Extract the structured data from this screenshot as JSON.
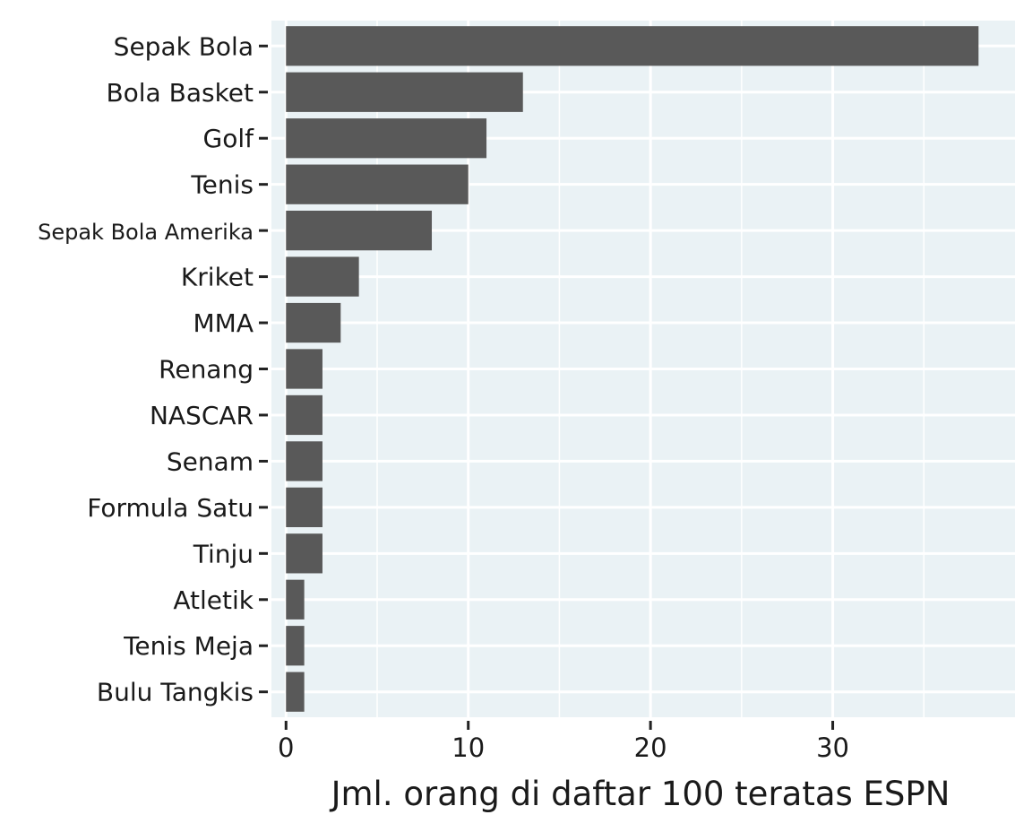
{
  "chart_data": {
    "type": "bar",
    "orientation": "horizontal",
    "title": "",
    "xlabel": "Jml. orang di daftar 100 teratas ESPN",
    "ylabel": "",
    "categories": [
      "Sepak Bola",
      "Bola Basket",
      "Golf",
      "Tenis",
      "Sepak Bola Amerika",
      "Kriket",
      "MMA",
      "Renang",
      "NASCAR",
      "Senam",
      "Formula Satu",
      "Tinju",
      "Atletik",
      "Tenis Meja",
      "Bulu Tangkis"
    ],
    "values": [
      38,
      13,
      11,
      10,
      8,
      4,
      3,
      2,
      2,
      2,
      2,
      2,
      1,
      1,
      1
    ],
    "xlim": [
      -0.8,
      40
    ],
    "xticks": [
      0,
      10,
      20,
      30
    ],
    "xtick_labels": [
      "0",
      "10",
      "20",
      "30"
    ],
    "minor_xticks": [
      5,
      15,
      25,
      35
    ],
    "grid": true,
    "colors": {
      "bar": "#595959",
      "panel": "#EAF2F5",
      "grid": "#FFFFFF",
      "text": "#1a1a1a"
    }
  }
}
